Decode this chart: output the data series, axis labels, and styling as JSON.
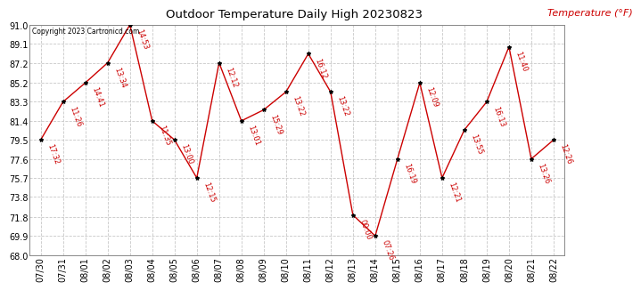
{
  "title": "Outdoor Temperature Daily High 20230823",
  "ylabel": "Temperature (°F)",
  "copyright": "Copyright 2023 Cartronicd.com",
  "background_color": "#ffffff",
  "grid_color": "#c8c8c8",
  "line_color": "#cc0000",
  "point_color": "#000000",
  "label_color": "#cc0000",
  "ylabel_color": "#cc0000",
  "dates": [
    "07/30",
    "07/31",
    "08/01",
    "08/02",
    "08/03",
    "08/04",
    "08/05",
    "08/06",
    "08/07",
    "08/08",
    "08/09",
    "08/10",
    "08/11",
    "08/12",
    "08/13",
    "08/14",
    "08/15",
    "08/16",
    "08/17",
    "08/18",
    "08/19",
    "08/20",
    "08/21",
    "08/22"
  ],
  "temperatures": [
    79.5,
    83.3,
    85.2,
    87.2,
    91.0,
    81.4,
    79.5,
    75.7,
    87.2,
    81.4,
    82.5,
    84.3,
    88.1,
    84.3,
    72.0,
    69.9,
    77.6,
    85.2,
    75.7,
    80.5,
    83.3,
    88.8,
    77.6,
    79.5
  ],
  "time_labels": [
    "17:32",
    "11:26",
    "14:41",
    "13:34",
    "14:53",
    "11:35",
    "13:00",
    "12:15",
    "12:12",
    "13:01",
    "15:29",
    "13:22",
    "16:12",
    "13:22",
    "00:00",
    "07:26",
    "16:19",
    "12:09",
    "12:21",
    "13:55",
    "16:13",
    "11:40",
    "13:26",
    "12:26"
  ],
  "ylim": [
    68.0,
    91.0
  ],
  "yticks": [
    68.0,
    69.9,
    71.8,
    73.8,
    75.7,
    77.6,
    79.5,
    81.4,
    83.3,
    85.2,
    87.2,
    89.1,
    91.0
  ]
}
